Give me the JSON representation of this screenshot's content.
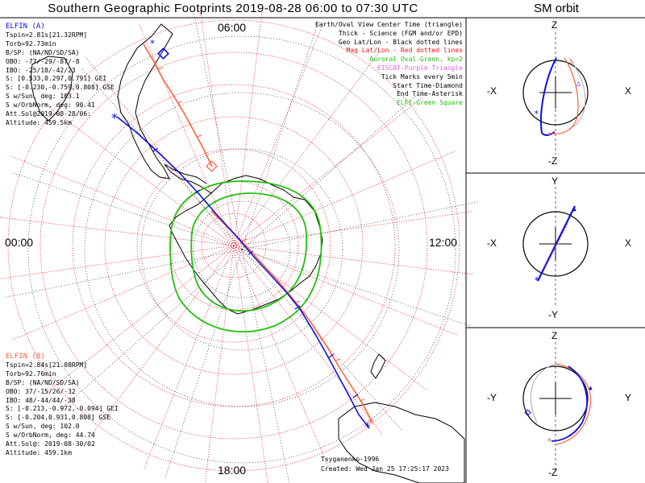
{
  "title": "Southern Geographic Footprints 2019-08-28 06:00 to 07:30 UTC",
  "sm_title": "SM orbit",
  "time_labels": {
    "top": "06:00",
    "left": "00:00",
    "right": "12:00",
    "bottom": "18:00"
  },
  "legend": [
    {
      "text": "Earth/Oval View Center Time (triangle)",
      "color": "#000000"
    },
    {
      "text": "Thick - Science (FGM and/or EPD)",
      "color": "#000000"
    },
    {
      "text": "Geo Lat/Lon - Black dotted lines",
      "color": "#000000"
    },
    {
      "text": "Mag Lat/Lon - Red dotted lines",
      "color": "#e8101a"
    },
    {
      "text": "Auroral Oval-Green, kp=2",
      "color": "#22c010"
    },
    {
      "text": "EISCAT-Purple Triangle",
      "color": "#e060e0"
    },
    {
      "text": "Tick Marks every 5min",
      "color": "#000000"
    },
    {
      "text": "Start Time-Diamond",
      "color": "#000000"
    },
    {
      "text": "End Time-Asterisk",
      "color": "#000000"
    },
    {
      "text": "ELFI-Green Square",
      "color": "#22c010"
    }
  ],
  "elfin_a": {
    "header": "ELFIN (A)",
    "color": "#1010e0",
    "lines": [
      "Tspin=2.81s[21.32RPM]",
      "Torb=92.73min",
      "B/SP: (NA/ND/SD/SA)",
      "OBO: -77/-29/-87/-8",
      "IBO: -25/18/-42/23",
      "S: [0.533,0.297,0.791] GEI",
      "S: [-0.230,-0.759,0.808] GSE",
      "S w/Sun, deg: 103.1",
      "S w/OrbNorm, deg: 90.41",
      "Att.Sol@2019-08-28/06:",
      "Altitude: 459.5km"
    ]
  },
  "elfin_b": {
    "header": "ELFIN (B)",
    "color": "#ff6040",
    "lines": [
      "Tspin=2.84s[21.08RPM]",
      "Torb=92.76min",
      "B/SP: (NA/ND/SD/SA)",
      "OBO: 37/-15/26/-32",
      "IBO: 48/-44/44/-38",
      "S: [-0.213,-0.972,-0.094] GEI",
      "S: [-0.204,0.931,0.808] GSE",
      "S w/Sun, deg: 102.0",
      "S w/OrbNorm, deg: 44.74",
      "Att.Sol@: 2019-08-30/02",
      "Altitude: 459.1km"
    ]
  },
  "credit": {
    "author": "Tsyganenko-1996",
    "created": "Created: Wed Jan 25 17:25:17 2023"
  },
  "panels": [
    {
      "name": "xz",
      "top": "Z",
      "bottom": "-Z",
      "left": "-X",
      "right": "X"
    },
    {
      "name": "xy",
      "top": "Y",
      "bottom": "-Y",
      "left": "-X",
      "right": "X"
    },
    {
      "name": "yz",
      "top": "Z",
      "bottom": "-Z",
      "left": "-Y",
      "right": "Y"
    }
  ],
  "colors": {
    "elfin_a": "#1010e0",
    "elfin_b": "#ff6040",
    "mag_grid": "#e8101a",
    "oval": "#22c010",
    "eiscat": "#e060e0"
  }
}
